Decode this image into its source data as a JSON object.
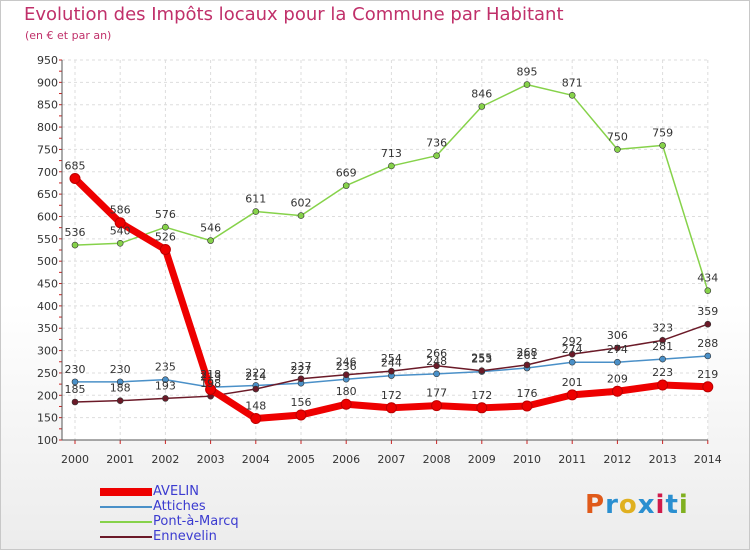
{
  "title": "Evolution des Impôts locaux pour la Commune par Habitant",
  "subtitle": "(en € et par an)",
  "logo": {
    "text": "Proxiti",
    "colors": [
      "#e05a1a",
      "#2a8fd0",
      "#e0b020",
      "#2a8fd0",
      "#d01a4a",
      "#2a8fd0",
      "#80b020"
    ]
  },
  "chart_data": {
    "type": "line",
    "title": "Evolution des Impôts locaux pour la Commune par Habitant",
    "subtitle": "(en € et par an)",
    "x": [
      "2000",
      "2001",
      "2002",
      "2003",
      "2004",
      "2005",
      "2006",
      "2007",
      "2008",
      "2009",
      "2010",
      "2011",
      "2012",
      "2013",
      "2014"
    ],
    "ylim": [
      100,
      950
    ],
    "yticks": [
      100,
      150,
      200,
      250,
      300,
      350,
      400,
      450,
      500,
      550,
      600,
      650,
      700,
      750,
      800,
      850,
      900,
      950
    ],
    "grid": true,
    "legend_position": "bottom-left",
    "series": [
      {
        "name": "AVELIN",
        "color": "#ee0000",
        "values": [
          685,
          586,
          526,
          213,
          148,
          156,
          180,
          172,
          177,
          172,
          176,
          201,
          209,
          223,
          219
        ]
      },
      {
        "name": "Attiches",
        "color": "#4a90c8",
        "values": [
          230,
          230,
          235,
          218,
          222,
          227,
          236,
          244,
          248,
          253,
          261,
          274,
          274,
          281,
          288
        ]
      },
      {
        "name": "Pont-à-Marcq",
        "color": "#86d24a",
        "values": [
          536,
          540,
          576,
          546,
          611,
          602,
          669,
          713,
          736,
          846,
          895,
          871,
          750,
          759,
          434
        ]
      },
      {
        "name": "Ennevelin",
        "color": "#6b1a28",
        "values": [
          185,
          188,
          193,
          198,
          214,
          237,
          246,
          254,
          266,
          255,
          268,
          292,
          306,
          323,
          359
        ]
      }
    ]
  }
}
